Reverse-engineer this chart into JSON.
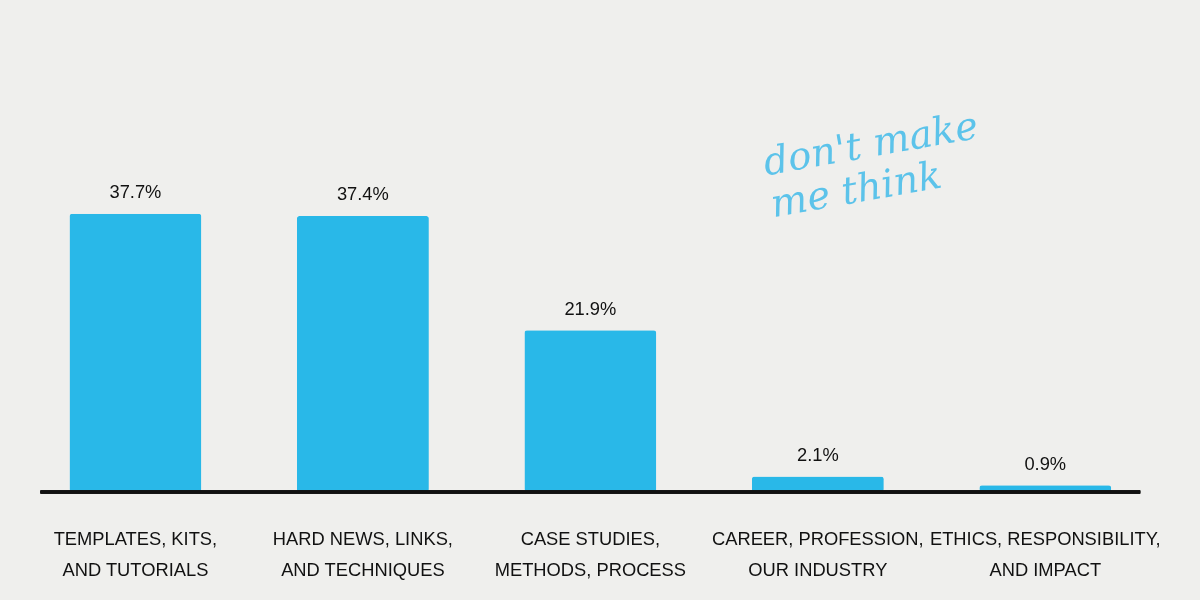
{
  "chart_data": {
    "type": "bar",
    "categories": [
      "TEMPLATES, KITS, AND TUTORIALS",
      "HARD NEWS, LINKS, AND TECHNIQUES",
      "CASE STUDIES, METHODS, PROCESS",
      "CAREER, PROFESSION, OUR INDUSTRY",
      "ETHICS, RESPONSIBILITY, AND IMPACT"
    ],
    "values": [
      37.7,
      37.4,
      21.9,
      2.1,
      0.9
    ],
    "value_labels": [
      "37.7%",
      "37.4%",
      "21.9%",
      "2.1%",
      "0.9%"
    ],
    "color": "#29b8e8",
    "annotations": [
      "don't make me think"
    ]
  }
}
